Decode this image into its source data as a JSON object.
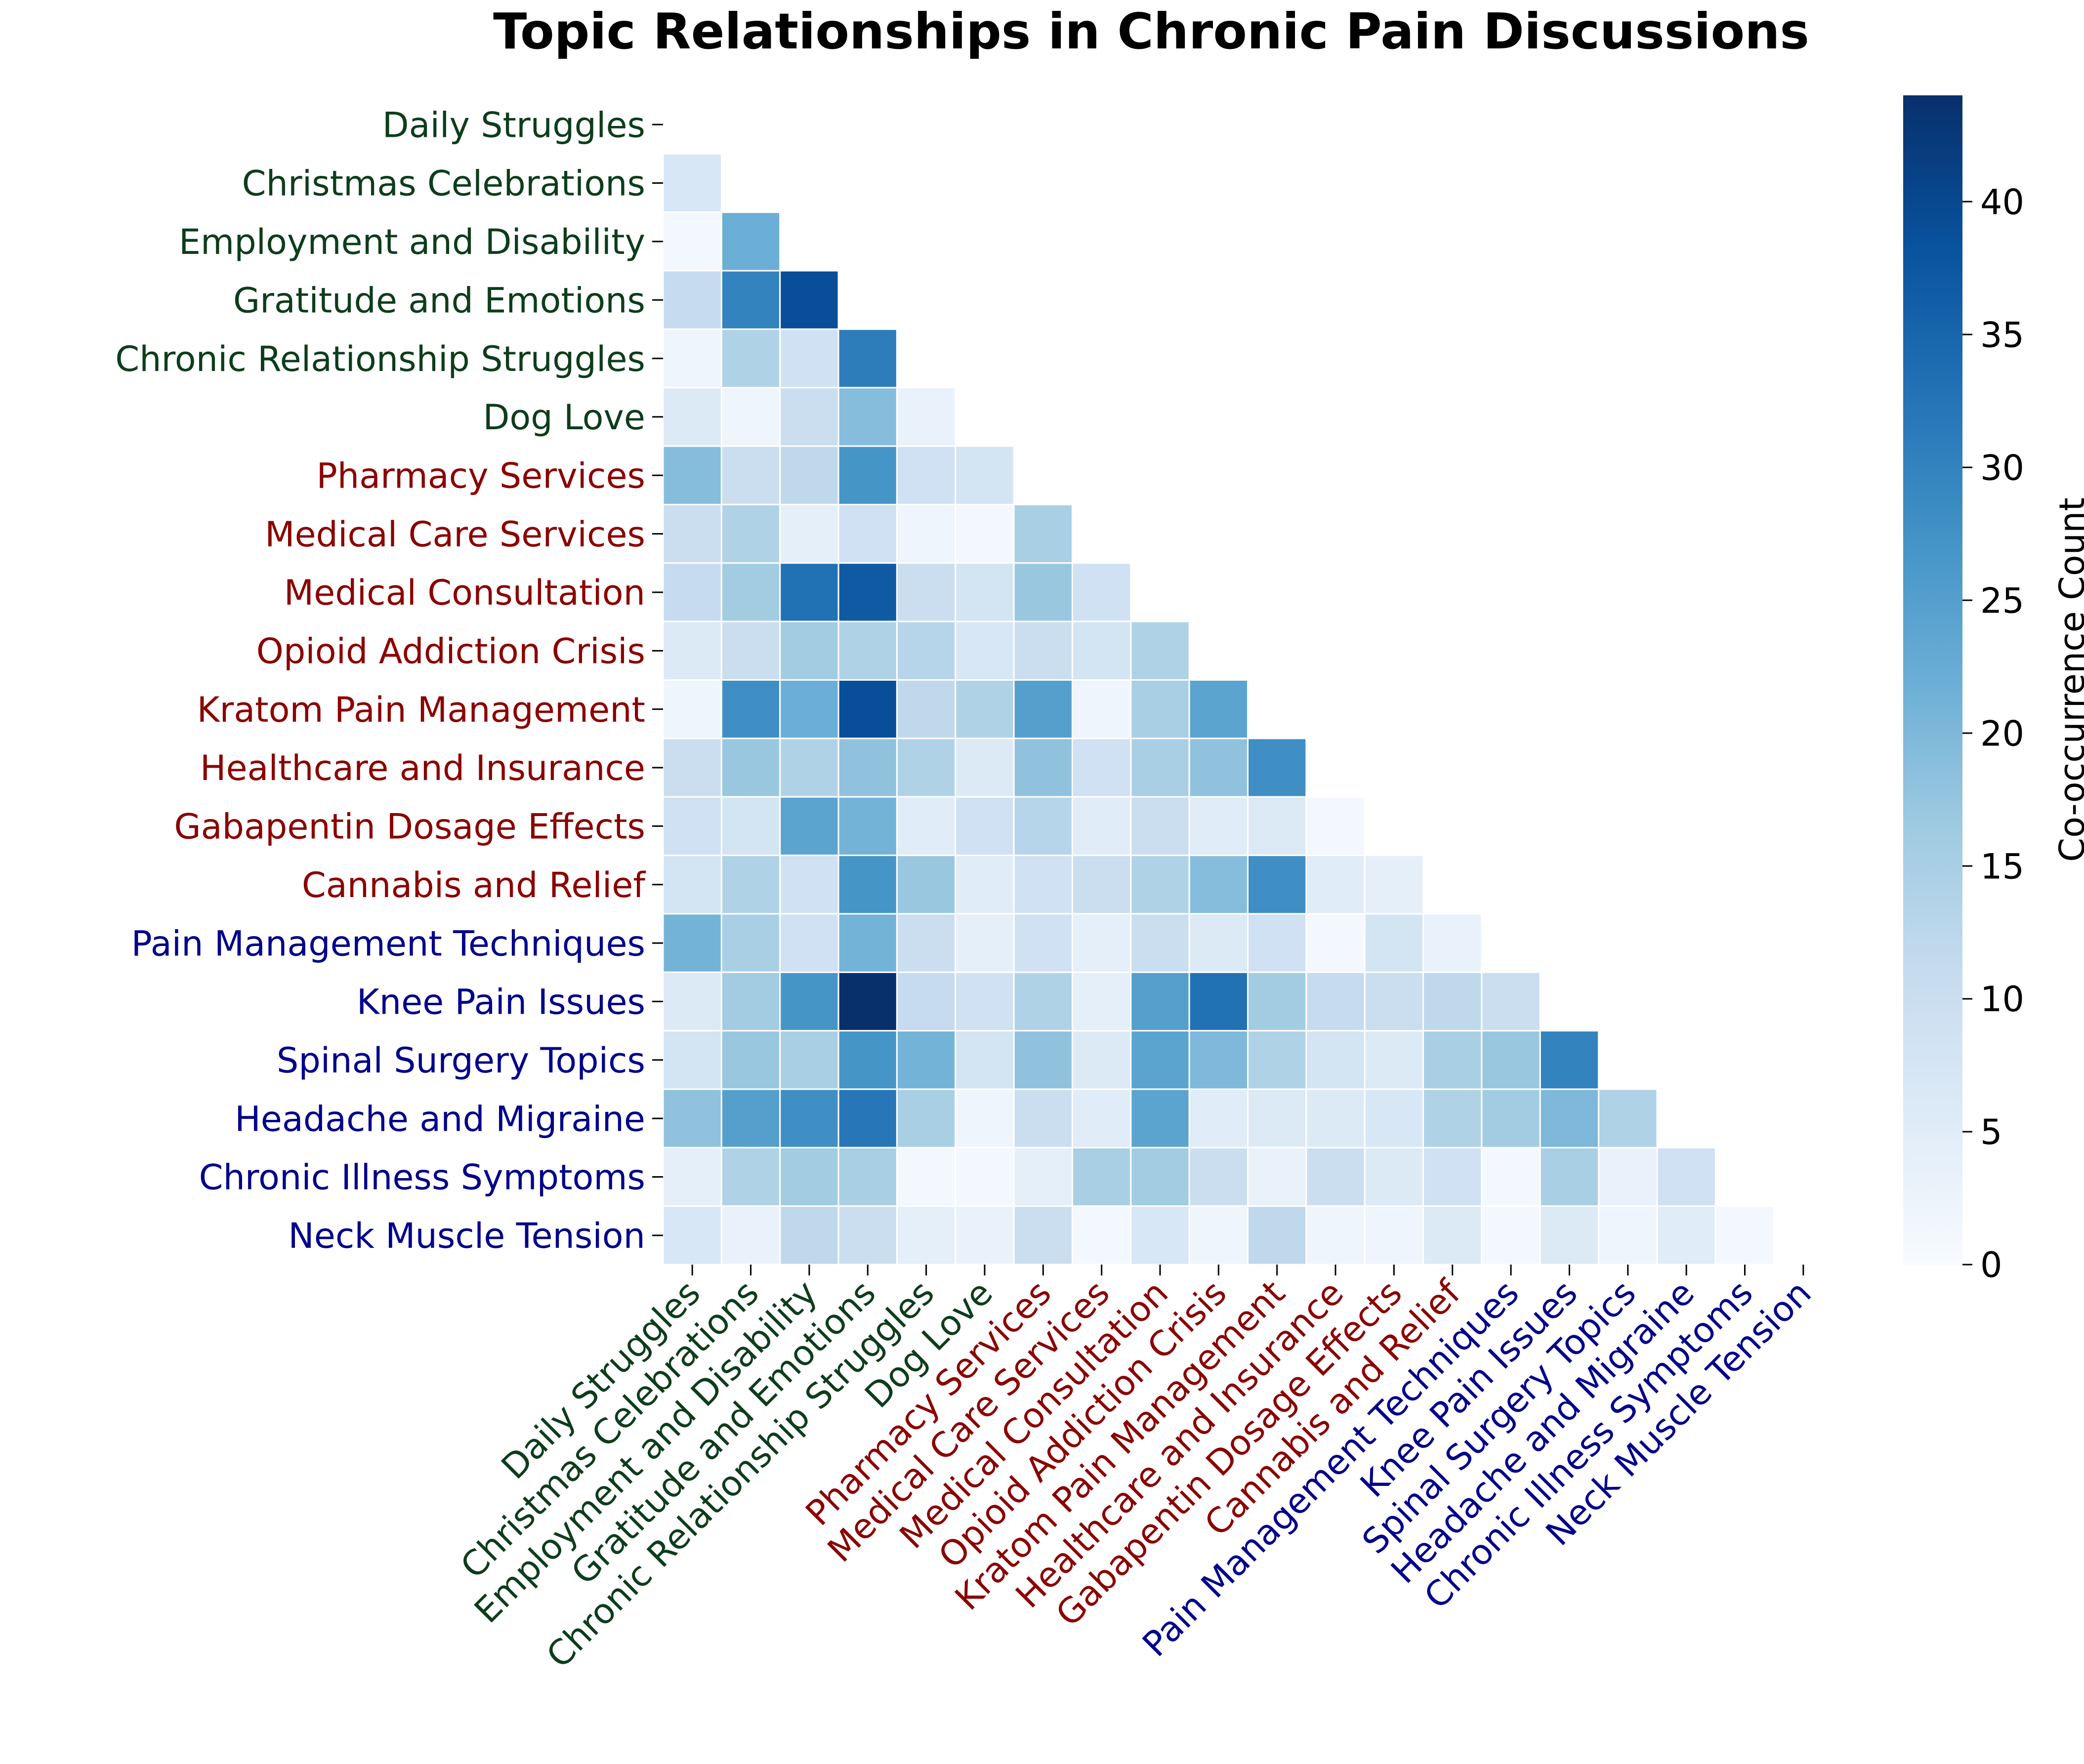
{
  "chart_data": {
    "type": "heatmap",
    "title": "Topic Relationships in Chronic Pain Discussions",
    "mask": "upper-triangle-and-diagonal",
    "labels": [
      "Daily Struggles",
      "Christmas Celebrations",
      "Employment and Disability",
      "Gratitude and Emotions",
      "Chronic Relationship Struggles",
      "Dog Love",
      "Pharmacy Services",
      "Medical Care Services",
      "Medical Consultation",
      "Opioid Addiction Crisis",
      "Kratom Pain Management",
      "Healthcare and Insurance",
      "Gabapentin Dosage Effects",
      "Cannabis and Relief",
      "Pain Management Techniques",
      "Knee Pain Issues",
      "Spinal Surgery Topics",
      "Headache and Migraine",
      "Chronic Illness Symptoms",
      "Neck Muscle Tension"
    ],
    "label_groups": [
      0,
      0,
      0,
      0,
      0,
      0,
      1,
      1,
      1,
      1,
      1,
      1,
      1,
      1,
      2,
      2,
      2,
      2,
      2,
      2
    ],
    "group_colors": [
      "#0d3d1c",
      "#8b0000",
      "#00008b"
    ],
    "matrix_lower": [
      [],
      [
        7
      ],
      [
        1,
        22
      ],
      [
        11,
        30,
        39
      ],
      [
        2,
        14,
        9,
        31
      ],
      [
        6,
        2,
        10,
        19,
        3
      ],
      [
        19,
        10,
        12,
        27,
        9,
        8
      ],
      [
        10,
        14,
        4,
        9,
        2,
        1,
        15
      ],
      [
        11,
        16,
        33,
        37,
        10,
        8,
        17,
        9
      ],
      [
        6,
        10,
        16,
        14,
        13,
        7,
        10,
        8,
        14
      ],
      [
        2,
        28,
        22,
        39,
        12,
        14,
        25,
        2,
        15,
        24
      ],
      [
        10,
        17,
        14,
        18,
        14,
        6,
        18,
        9,
        15,
        18,
        28
      ],
      [
        9,
        8,
        24,
        21,
        5,
        9,
        13,
        5,
        10,
        5,
        6,
        1
      ],
      [
        8,
        14,
        9,
        27,
        17,
        5,
        9,
        10,
        14,
        19,
        28,
        5,
        4
      ],
      [
        21,
        15,
        9,
        21,
        10,
        4,
        9,
        4,
        10,
        6,
        9,
        1,
        8,
        3
      ],
      [
        6,
        16,
        27,
        44,
        11,
        9,
        14,
        4,
        25,
        33,
        16,
        11,
        10,
        12,
        10
      ],
      [
        8,
        17,
        15,
        27,
        21,
        8,
        18,
        6,
        24,
        20,
        14,
        8,
        6,
        15,
        17,
        30
      ],
      [
        18,
        25,
        28,
        32,
        15,
        2,
        10,
        5,
        24,
        5,
        6,
        6,
        7,
        14,
        16,
        20,
        14
      ],
      [
        4,
        14,
        16,
        15,
        1,
        1,
        4,
        15,
        16,
        10,
        3,
        10,
        6,
        9,
        1,
        15,
        3,
        9
      ],
      [
        7,
        3,
        12,
        10,
        4,
        3,
        10,
        1,
        7,
        2,
        12,
        2,
        2,
        6,
        1,
        6,
        2,
        5,
        1
      ]
    ],
    "colorbar": {
      "label": "Co-occurrence Count",
      "min": 0,
      "max": 44,
      "ticks": [
        0,
        5,
        10,
        15,
        20,
        25,
        30,
        35,
        40
      ]
    },
    "colormap": [
      "#f7fbff",
      "#deebf7",
      "#c6dbef",
      "#9ecae1",
      "#6baed6",
      "#4292c6",
      "#2171b5",
      "#08519c",
      "#08306b"
    ]
  }
}
